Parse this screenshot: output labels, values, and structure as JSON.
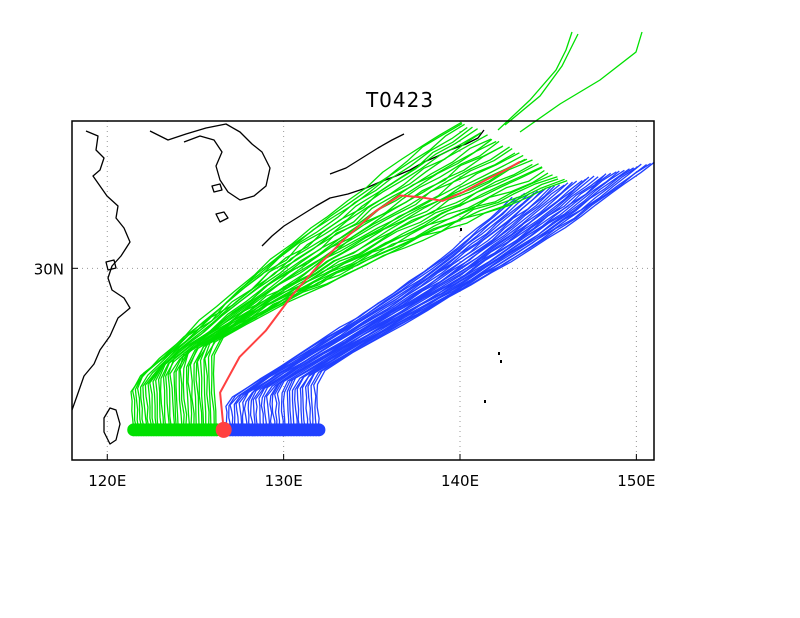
{
  "title": "T0423",
  "chart_data": {
    "type": "map-track-ensemble",
    "title": "T0423",
    "lon_range": [
      118,
      151
    ],
    "lat_range": [
      19.2,
      38.3
    ],
    "x_ticks": [
      {
        "value": 120,
        "label": "120E"
      },
      {
        "value": 130,
        "label": "130E"
      },
      {
        "value": 140,
        "label": "140E"
      },
      {
        "value": 150,
        "label": "150E"
      }
    ],
    "y_ticks": [
      {
        "value": 30,
        "label": "30N"
      }
    ],
    "grid": true,
    "colors": {
      "west_members": "#00e000",
      "east_members": "#2040ff",
      "observed_track": "#ff4040",
      "coast": "#000000",
      "grid": "#999999"
    },
    "tracks": {
      "start_lat": 20.9,
      "west_group": {
        "color_name": "green",
        "start_lon": [
          121.5,
          126.2
        ],
        "end_lon": [
          140,
          146
        ],
        "end_lat": [
          34,
          38.3
        ],
        "count": 34
      },
      "east_group": {
        "color_name": "blue",
        "start_lon": [
          126.8,
          132.0
        ],
        "end_lon": [
          143,
          151
        ],
        "end_lat": [
          34,
          36
        ],
        "count": 34
      },
      "observed": [
        [
          126.6,
          20.9
        ],
        [
          126.4,
          23.0
        ],
        [
          127.5,
          25.0
        ],
        [
          129.0,
          26.5
        ],
        [
          130.5,
          28.5
        ],
        [
          132.0,
          30.2
        ],
        [
          133.5,
          31.7
        ],
        [
          135.2,
          33.2
        ],
        [
          136.6,
          34.1
        ],
        [
          137.8,
          34.0
        ],
        [
          139.0,
          33.8
        ],
        [
          140.2,
          34.3
        ],
        [
          141.5,
          35.0
        ],
        [
          142.7,
          35.6
        ],
        [
          143.4,
          36.0
        ]
      ]
    }
  }
}
